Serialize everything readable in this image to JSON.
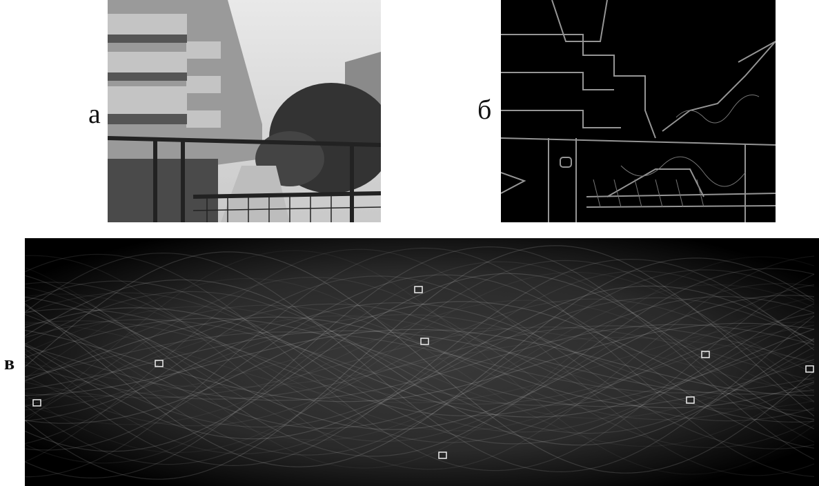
{
  "panels": [
    {
      "label": "а"
    },
    {
      "label": "б"
    },
    {
      "label": "в"
    }
  ]
}
